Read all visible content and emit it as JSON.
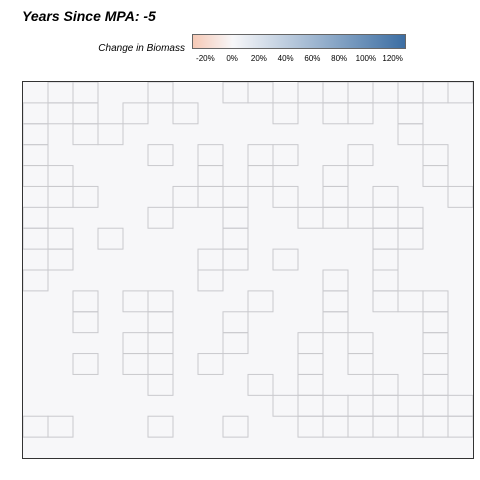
{
  "chart_data": {
    "type": "heatmap",
    "title": "Years Since MPA: -5",
    "legend": {
      "title": "Change in Biomass",
      "tick_labels": [
        "-20%",
        "0%",
        "20%",
        "40%",
        "60%",
        "80%",
        "100%",
        "120%"
      ],
      "tick_values": [
        -20,
        0,
        20,
        40,
        60,
        80,
        100,
        120
      ],
      "range": [
        -30,
        130
      ],
      "colors": {
        "low": "#f6c9b6",
        "mid": "#f7f7f9",
        "high": "#3c6ea3"
      }
    },
    "grid": {
      "cols": 18,
      "rows": 18
    },
    "value": 0,
    "cell_fill": "#f7f7f9",
    "mpa_color": "#c9c9cd",
    "mpa_cells": [
      [
        1,
        0
      ],
      [
        2,
        0
      ],
      [
        5,
        0
      ],
      [
        8,
        0
      ],
      [
        9,
        0
      ],
      [
        11,
        0
      ],
      [
        12,
        0
      ],
      [
        13,
        0
      ],
      [
        14,
        0
      ],
      [
        15,
        0
      ],
      [
        16,
        0
      ],
      [
        17,
        0
      ],
      [
        0,
        1
      ],
      [
        1,
        1
      ],
      [
        2,
        1
      ],
      [
        4,
        1
      ],
      [
        6,
        1
      ],
      [
        10,
        1
      ],
      [
        12,
        1
      ],
      [
        13,
        1
      ],
      [
        15,
        1
      ],
      [
        0,
        2
      ],
      [
        2,
        2
      ],
      [
        3,
        2
      ],
      [
        15,
        2
      ],
      [
        0,
        3
      ],
      [
        5,
        3
      ],
      [
        7,
        3
      ],
      [
        9,
        3
      ],
      [
        10,
        3
      ],
      [
        13,
        3
      ],
      [
        16,
        3
      ],
      [
        0,
        4
      ],
      [
        1,
        4
      ],
      [
        7,
        4
      ],
      [
        9,
        4
      ],
      [
        12,
        4
      ],
      [
        16,
        4
      ],
      [
        1,
        5
      ],
      [
        2,
        5
      ],
      [
        6,
        5
      ],
      [
        7,
        5
      ],
      [
        8,
        5
      ],
      [
        10,
        5
      ],
      [
        12,
        5
      ],
      [
        14,
        5
      ],
      [
        17,
        5
      ],
      [
        0,
        6
      ],
      [
        5,
        6
      ],
      [
        8,
        6
      ],
      [
        11,
        6
      ],
      [
        12,
        6
      ],
      [
        13,
        6
      ],
      [
        14,
        6
      ],
      [
        15,
        6
      ],
      [
        0,
        7
      ],
      [
        1,
        7
      ],
      [
        3,
        7
      ],
      [
        8,
        7
      ],
      [
        14,
        7
      ],
      [
        15,
        7
      ],
      [
        1,
        8
      ],
      [
        7,
        8
      ],
      [
        8,
        8
      ],
      [
        10,
        8
      ],
      [
        14,
        8
      ],
      [
        0,
        9
      ],
      [
        7,
        9
      ],
      [
        12,
        9
      ],
      [
        14,
        9
      ],
      [
        2,
        10
      ],
      [
        4,
        10
      ],
      [
        5,
        10
      ],
      [
        9,
        10
      ],
      [
        12,
        10
      ],
      [
        14,
        10
      ],
      [
        15,
        10
      ],
      [
        16,
        10
      ],
      [
        2,
        11
      ],
      [
        5,
        11
      ],
      [
        8,
        11
      ],
      [
        12,
        11
      ],
      [
        16,
        11
      ],
      [
        4,
        12
      ],
      [
        5,
        12
      ],
      [
        8,
        12
      ],
      [
        11,
        12
      ],
      [
        13,
        12
      ],
      [
        16,
        12
      ],
      [
        2,
        13
      ],
      [
        4,
        13
      ],
      [
        5,
        13
      ],
      [
        7,
        13
      ],
      [
        11,
        13
      ],
      [
        13,
        13
      ],
      [
        16,
        13
      ],
      [
        5,
        14
      ],
      [
        9,
        14
      ],
      [
        11,
        14
      ],
      [
        14,
        14
      ],
      [
        16,
        14
      ],
      [
        10,
        15
      ],
      [
        11,
        15
      ],
      [
        12,
        15
      ],
      [
        13,
        15
      ],
      [
        14,
        15
      ],
      [
        15,
        15
      ],
      [
        16,
        15
      ],
      [
        17,
        15
      ],
      [
        0,
        16
      ],
      [
        1,
        16
      ],
      [
        5,
        16
      ],
      [
        8,
        16
      ],
      [
        11,
        16
      ],
      [
        12,
        16
      ],
      [
        13,
        16
      ],
      [
        14,
        16
      ],
      [
        15,
        16
      ],
      [
        16,
        16
      ],
      [
        17,
        16
      ]
    ]
  }
}
